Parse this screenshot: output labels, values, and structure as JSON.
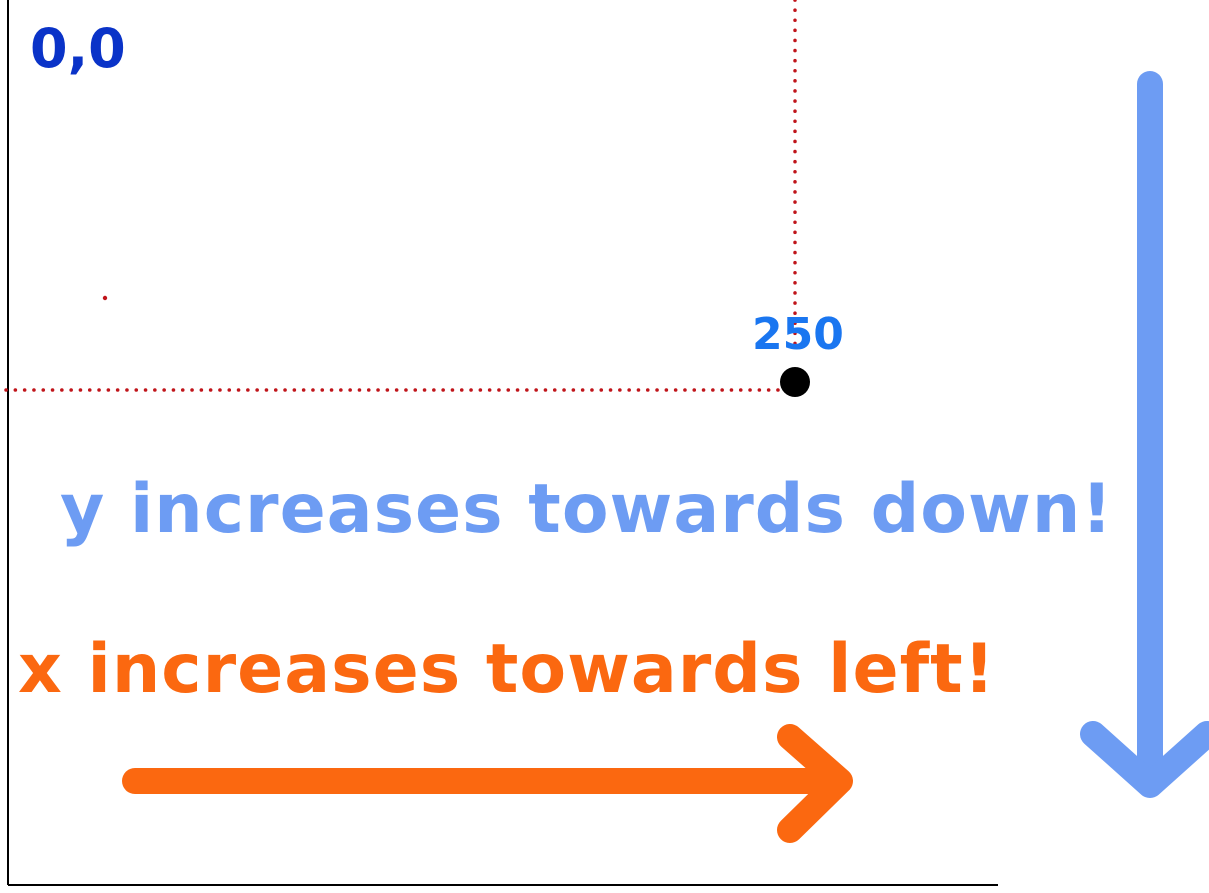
{
  "labels": {
    "origin": "0,0",
    "point_value": "250",
    "y_caption": "y increases towards down!",
    "x_caption": "x increases towards left!"
  },
  "colors": {
    "origin_text": "#0a33c8",
    "point_text": "#1a76f0",
    "y_caption": "#6d9cf3",
    "y_arrow": "#6d9cf3",
    "x_caption": "#fb6810",
    "x_arrow": "#fb6810",
    "guide_lines": "#c0141a",
    "point": "#000000",
    "axes": "#000000"
  },
  "icons": {
    "y_direction": "arrow-down-icon",
    "x_direction": "arrow-right-icon"
  }
}
